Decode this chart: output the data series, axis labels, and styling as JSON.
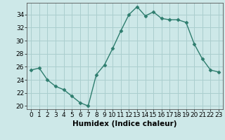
{
  "x": [
    0,
    1,
    2,
    3,
    4,
    5,
    6,
    7,
    8,
    9,
    10,
    11,
    12,
    13,
    14,
    15,
    16,
    17,
    18,
    19,
    20,
    21,
    22,
    23
  ],
  "y": [
    25.5,
    25.8,
    24.0,
    23.0,
    22.5,
    21.5,
    20.5,
    20.0,
    24.8,
    26.3,
    28.8,
    31.5,
    34.0,
    35.2,
    33.8,
    34.4,
    33.4,
    33.2,
    33.2,
    32.8,
    29.5,
    27.2,
    25.5,
    25.2
  ],
  "line_color": "#2e7d6e",
  "marker": "D",
  "marker_size": 2.5,
  "bg_color": "#cde8e8",
  "grid_color": "#aacece",
  "xlabel": "Humidex (Indice chaleur)",
  "ylim": [
    19.5,
    35.8
  ],
  "xlim": [
    -0.5,
    23.5
  ],
  "yticks": [
    20,
    22,
    24,
    26,
    28,
    30,
    32,
    34
  ],
  "xtick_labels": [
    "0",
    "1",
    "2",
    "3",
    "4",
    "5",
    "6",
    "7",
    "8",
    "9",
    "10",
    "11",
    "12",
    "13",
    "14",
    "15",
    "16",
    "17",
    "18",
    "19",
    "20",
    "21",
    "22",
    "23"
  ],
  "tick_fontsize": 6.5,
  "xlabel_fontsize": 7.5
}
